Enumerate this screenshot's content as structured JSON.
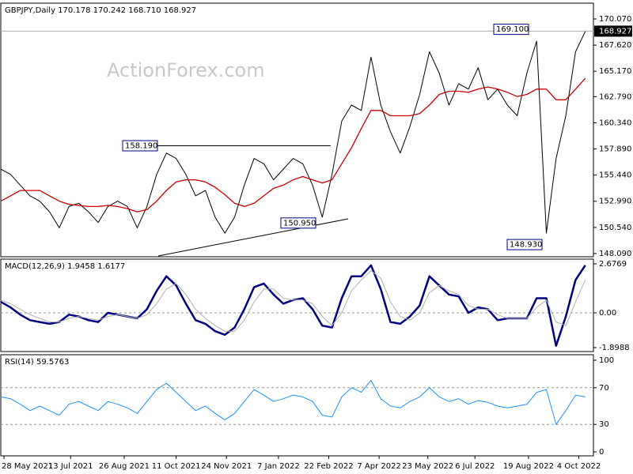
{
  "chart_data": [
    {
      "type": "line",
      "title": "GBPJPY,Daily  170.178 170.242 168.710 168.927",
      "watermark": "ActionForex.com",
      "x": [
        0,
        6,
        12,
        18,
        24,
        30,
        36,
        42,
        48,
        54,
        60,
        66,
        72,
        78,
        84,
        90,
        96,
        102,
        108,
        114,
        120,
        126,
        132,
        138,
        144,
        150,
        156,
        162,
        168,
        174,
        180,
        186,
        192,
        198,
        204,
        210,
        216,
        222,
        228,
        234,
        240,
        246,
        252,
        258,
        264,
        270,
        276,
        282,
        288,
        294,
        300,
        306,
        312,
        318,
        324,
        330,
        336,
        342,
        348,
        354,
        360
      ],
      "xlim": [
        0,
        365
      ],
      "ylim": [
        147.79,
        171.55
      ],
      "yticks": [
        {
          "value": 170.07,
          "label": "170.070"
        },
        {
          "value": 167.62,
          "label": "167.620"
        },
        {
          "value": 165.17,
          "label": "165.170"
        },
        {
          "value": 162.79,
          "label": "162.790"
        },
        {
          "value": 160.34,
          "label": "160.340"
        },
        {
          "value": 157.89,
          "label": "157.890"
        },
        {
          "value": 155.44,
          "label": "155.440"
        },
        {
          "value": 152.99,
          "label": "152.990"
        },
        {
          "value": 150.54,
          "label": "150.540"
        },
        {
          "value": 148.09,
          "label": "148.090"
        }
      ],
      "series": [
        {
          "color": "#000000",
          "values": [
            156.0,
            155.5,
            154.5,
            153.5,
            153.0,
            152.0,
            150.5,
            152.5,
            152.8,
            152.0,
            151.0,
            152.5,
            153.0,
            152.5,
            150.5,
            152.5,
            155.5,
            157.5,
            157.0,
            155.5,
            153.5,
            154.0,
            151.5,
            150.0,
            151.5,
            154.5,
            157.0,
            156.5,
            155.0,
            156.0,
            157.0,
            156.5,
            154.5,
            151.5,
            155.5,
            160.5,
            162.0,
            161.5,
            166.5,
            162.0,
            159.5,
            157.5,
            160.0,
            163.0,
            167.0,
            165.0,
            162.0,
            164.0,
            163.5,
            165.5,
            162.5,
            163.5,
            162.0,
            161.0,
            165.0,
            168.0,
            150.0,
            157.0,
            161.0,
            167.0,
            168.9
          ]
        },
        {
          "color": "#cc0000",
          "values": [
            153,
            153.5,
            154,
            154,
            154,
            153.5,
            153,
            152.7,
            152.6,
            152.5,
            152.5,
            152.6,
            152.5,
            152.3,
            152.0,
            152.2,
            153,
            154,
            154.8,
            155,
            155,
            154.8,
            154.3,
            153.6,
            152.8,
            152.5,
            152.8,
            153.5,
            154.2,
            154.5,
            155,
            155.3,
            155,
            154.7,
            155,
            156.5,
            158,
            159.8,
            161.5,
            161.5,
            161,
            161,
            161,
            161.2,
            162,
            163,
            163.3,
            163.3,
            163.2,
            163.5,
            163.7,
            163.5,
            163.2,
            162.8,
            163,
            163.5,
            163.5,
            162.5,
            162.5,
            163.5,
            164.5
          ]
        }
      ],
      "annotations": [
        {
          "value": 158.19,
          "label": "158.190"
        },
        {
          "value": 150.95,
          "label": "150.950"
        },
        {
          "value": 169.1,
          "label": "169.100"
        },
        {
          "value": 148.93,
          "label": "148.930"
        }
      ],
      "last": {
        "value": 168.927,
        "label": "168.927"
      }
    },
    {
      "type": "line",
      "title": "MACD(12,26,9) 1.9458 1.6177",
      "x": [
        0,
        6,
        12,
        18,
        24,
        30,
        36,
        42,
        48,
        54,
        60,
        66,
        72,
        78,
        84,
        90,
        96,
        102,
        108,
        114,
        120,
        126,
        132,
        138,
        144,
        150,
        156,
        162,
        168,
        174,
        180,
        186,
        192,
        198,
        204,
        210,
        216,
        222,
        228,
        234,
        240,
        246,
        252,
        258,
        264,
        270,
        276,
        282,
        288,
        294,
        300,
        306,
        312,
        318,
        324,
        330,
        336,
        342,
        348,
        354,
        360
      ],
      "xlim": [
        0,
        365
      ],
      "ylim": [
        -2.114,
        2.935
      ],
      "yticks": [
        2.6769,
        {
          "value": 0,
          "label": "0.00"
        },
        -1.8988
      ],
      "levels": [
        0
      ],
      "series": [
        {
          "color": "#000080",
          "values": [
            0.6,
            0.3,
            -0.1,
            -0.4,
            -0.5,
            -0.6,
            -0.5,
            -0.1,
            -0.2,
            -0.4,
            -0.5,
            0.0,
            -0.1,
            -0.2,
            -0.3,
            0.2,
            1.2,
            2.0,
            1.5,
            0.5,
            -0.4,
            -0.6,
            -1.0,
            -1.2,
            -0.8,
            0.2,
            1.4,
            1.6,
            1.0,
            0.5,
            0.7,
            0.8,
            0.2,
            -0.7,
            -0.8,
            0.8,
            2.0,
            2.0,
            2.6,
            1.3,
            -0.5,
            -0.6,
            -0.2,
            0.4,
            2.0,
            1.5,
            1.0,
            0.9,
            0.0,
            0.3,
            0.2,
            -0.4,
            -0.3,
            -0.3,
            -0.3,
            0.8,
            0.8,
            -1.8,
            -0.2,
            1.8,
            2.6
          ]
        },
        {
          "color": "#b0b0b0",
          "values": [
            0.7,
            0.5,
            0.2,
            -0.1,
            -0.3,
            -0.5,
            -0.5,
            -0.3,
            -0.2,
            -0.3,
            -0.4,
            -0.2,
            -0.1,
            -0.2,
            -0.3,
            -0.1,
            0.5,
            1.3,
            1.6,
            1.0,
            0.2,
            -0.3,
            -0.7,
            -1.0,
            -1.0,
            -0.4,
            0.6,
            1.3,
            1.3,
            0.8,
            0.7,
            0.7,
            0.5,
            -0.2,
            -0.7,
            0.0,
            1.2,
            1.8,
            2.3,
            1.9,
            0.6,
            -0.2,
            -0.4,
            0.0,
            1.1,
            1.5,
            1.2,
            1.0,
            0.4,
            0.2,
            0.2,
            -0.1,
            -0.3,
            -0.3,
            -0.3,
            0.3,
            0.7,
            -0.5,
            -0.7,
            0.6,
            1.8
          ]
        }
      ]
    },
    {
      "type": "line",
      "title": "RSI(14) 59.5763",
      "x": [
        0,
        6,
        12,
        18,
        24,
        30,
        36,
        42,
        48,
        54,
        60,
        66,
        72,
        78,
        84,
        90,
        96,
        102,
        108,
        114,
        120,
        126,
        132,
        138,
        144,
        150,
        156,
        162,
        168,
        174,
        180,
        186,
        192,
        198,
        204,
        210,
        216,
        222,
        228,
        234,
        240,
        246,
        252,
        258,
        264,
        270,
        276,
        282,
        288,
        294,
        300,
        306,
        312,
        318,
        324,
        330,
        336,
        342,
        348,
        354,
        360
      ],
      "xlim": [
        0,
        365
      ],
      "ylim": [
        -4.3,
        106
      ],
      "yticks": [
        100,
        70,
        30,
        0
      ],
      "levels": [
        70,
        30
      ],
      "xticks": [
        {
          "value": 2,
          "label": "28 May 2021"
        },
        {
          "value": 43,
          "label": "13 Jul 2021"
        },
        {
          "value": 76,
          "label": "26 Aug 2021"
        },
        {
          "value": 108,
          "label": "11 Oct 2021"
        },
        {
          "value": 139,
          "label": "24 Nov 2021"
        },
        {
          "value": 171,
          "label": "7 Jan 2022"
        },
        {
          "value": 202,
          "label": "22 Feb 2022"
        },
        {
          "value": 233,
          "label": "7 Apr 2022"
        },
        {
          "value": 263,
          "label": "23 May 2022"
        },
        {
          "value": 292,
          "label": "6 Jul 2022"
        },
        {
          "value": 325,
          "label": "19 Aug 2022"
        },
        {
          "value": 356,
          "label": "4 Oct 2022"
        }
      ],
      "series": [
        {
          "color": "#1e90ff",
          "values": [
            60,
            58,
            52,
            45,
            50,
            45,
            40,
            52,
            55,
            50,
            45,
            55,
            52,
            48,
            42,
            55,
            68,
            75,
            65,
            55,
            45,
            50,
            42,
            35,
            42,
            55,
            68,
            62,
            55,
            58,
            62,
            60,
            55,
            40,
            38,
            60,
            70,
            65,
            78,
            58,
            50,
            48,
            55,
            60,
            70,
            60,
            55,
            58,
            52,
            56,
            54,
            50,
            48,
            50,
            52,
            65,
            68,
            30,
            45,
            62,
            60
          ]
        }
      ]
    }
  ]
}
